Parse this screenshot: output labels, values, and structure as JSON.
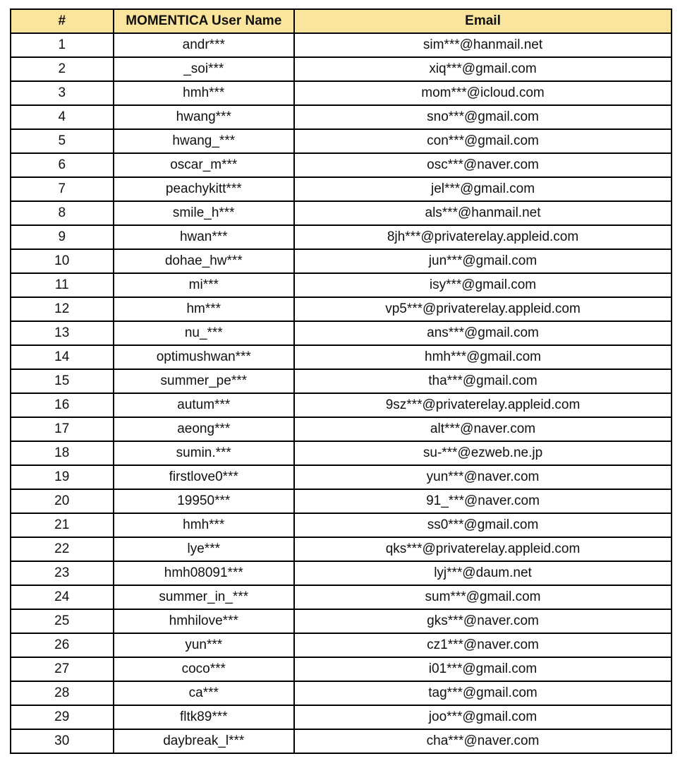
{
  "table": {
    "headers": [
      "#",
      "MOMENTICA User Name",
      "Email"
    ],
    "header_color": "#fbe59d",
    "rows": [
      [
        "1",
        "andr***",
        "sim***@hanmail.net"
      ],
      [
        "2",
        "_soi***",
        "xiq***@gmail.com"
      ],
      [
        "3",
        "hmh***",
        "mom***@icloud.com"
      ],
      [
        "4",
        "hwang***",
        "sno***@gmail.com"
      ],
      [
        "5",
        "hwang_***",
        "con***@gmail.com"
      ],
      [
        "6",
        "oscar_m***",
        "osc***@naver.com"
      ],
      [
        "7",
        "peachykitt***",
        "jel***@gmail.com"
      ],
      [
        "8",
        "smile_h***",
        "als***@hanmail.net"
      ],
      [
        "9",
        "hwan***",
        "8jh***@privaterelay.appleid.com"
      ],
      [
        "10",
        "dohae_hw***",
        "jun***@gmail.com"
      ],
      [
        "11",
        "mi***",
        "isy***@gmail.com"
      ],
      [
        "12",
        "hm***",
        "vp5***@privaterelay.appleid.com"
      ],
      [
        "13",
        "nu_***",
        "ans***@gmail.com"
      ],
      [
        "14",
        "optimushwan***",
        "hmh***@gmail.com"
      ],
      [
        "15",
        "summer_pe***",
        "tha***@gmail.com"
      ],
      [
        "16",
        "autum***",
        "9sz***@privaterelay.appleid.com"
      ],
      [
        "17",
        "aeong***",
        "alt***@naver.com"
      ],
      [
        "18",
        "sumin.***",
        "su-***@ezweb.ne.jp"
      ],
      [
        "19",
        "firstlove0***",
        "yun***@naver.com"
      ],
      [
        "20",
        "19950***",
        "91_***@naver.com"
      ],
      [
        "21",
        "hmh***",
        "ss0***@gmail.com"
      ],
      [
        "22",
        "lye***",
        "qks***@privaterelay.appleid.com"
      ],
      [
        "23",
        "hmh08091***",
        "lyj***@daum.net"
      ],
      [
        "24",
        "summer_in_***",
        "sum***@gmail.com"
      ],
      [
        "25",
        "hmhilove***",
        "gks***@naver.com"
      ],
      [
        "26",
        "yun***",
        "cz1***@naver.com"
      ],
      [
        "27",
        "coco***",
        "i01***@gmail.com"
      ],
      [
        "28",
        "ca***",
        "tag***@gmail.com"
      ],
      [
        "29",
        "fltk89***",
        "joo***@gmail.com"
      ],
      [
        "30",
        "daybreak_l***",
        "cha***@naver.com"
      ]
    ]
  }
}
